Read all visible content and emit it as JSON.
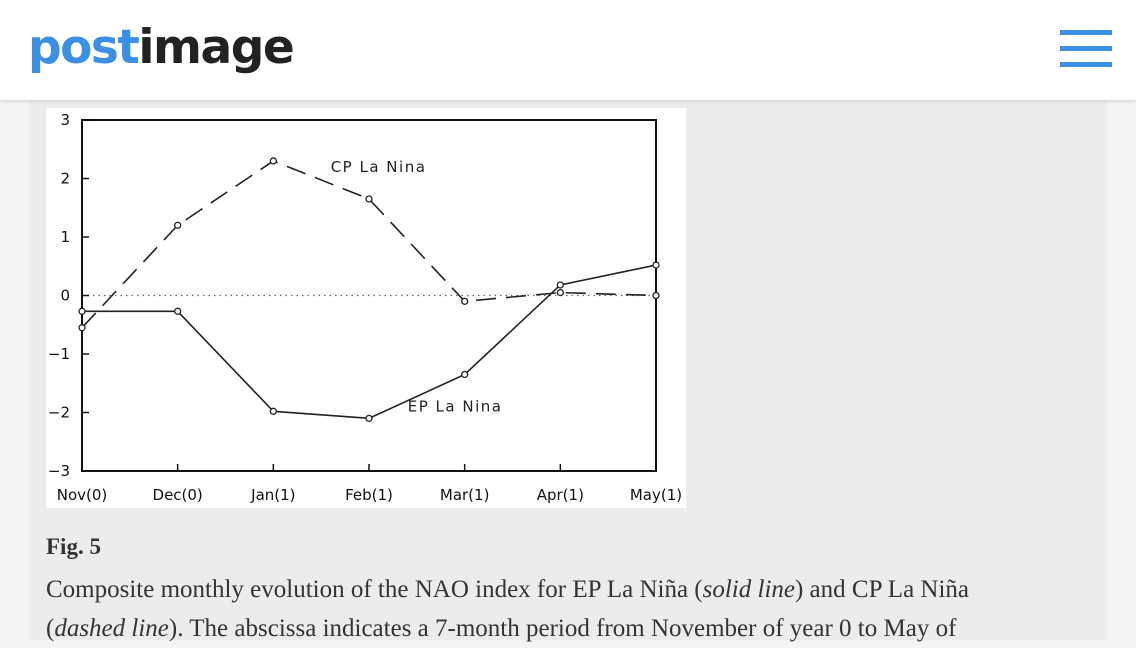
{
  "header": {
    "logo_part1": "post",
    "logo_part2": "image",
    "menu_icon": "hamburger-menu-icon",
    "accent_color": "#3b8fe4"
  },
  "caption": {
    "title": "Fig. 5",
    "line1_a": "Composite monthly evolution of the NAO index for EP La Niña (",
    "line1_b": "solid line",
    "line1_c": ") and CP La Niña",
    "line2_a": "(",
    "line2_b": "dashed line",
    "line2_c": "). The abscissa indicates a 7-month period from November of year 0 to May of"
  },
  "chart_data": {
    "type": "line",
    "categories": [
      "Nov(0)",
      "Dec(0)",
      "Jan(1)",
      "Feb(1)",
      "Mar(1)",
      "Apr(1)",
      "May(1)"
    ],
    "ylim": [
      -3,
      3
    ],
    "yticks": [
      "3",
      "2",
      "1",
      "0",
      "−1",
      "−2",
      "−3"
    ],
    "ytick_values": [
      3,
      2,
      1,
      0,
      -1,
      -2,
      -3
    ],
    "grid": false,
    "zero_line": "dotted",
    "series": [
      {
        "name": "CP La Nina",
        "style": "dashed",
        "values": [
          -0.55,
          1.2,
          2.3,
          1.65,
          -0.1,
          0.05,
          0.0
        ]
      },
      {
        "name": "EP La Nina",
        "style": "solid",
        "values": [
          -0.27,
          -0.27,
          -1.98,
          -2.1,
          -1.35,
          0.18,
          0.52
        ]
      }
    ],
    "annotations": [
      {
        "text": "CP La Nina",
        "series": 0,
        "at": 3.1,
        "value": 2.2
      },
      {
        "text": "EP La Nina",
        "series": 1,
        "at": 3.9,
        "value": -1.9
      }
    ]
  }
}
